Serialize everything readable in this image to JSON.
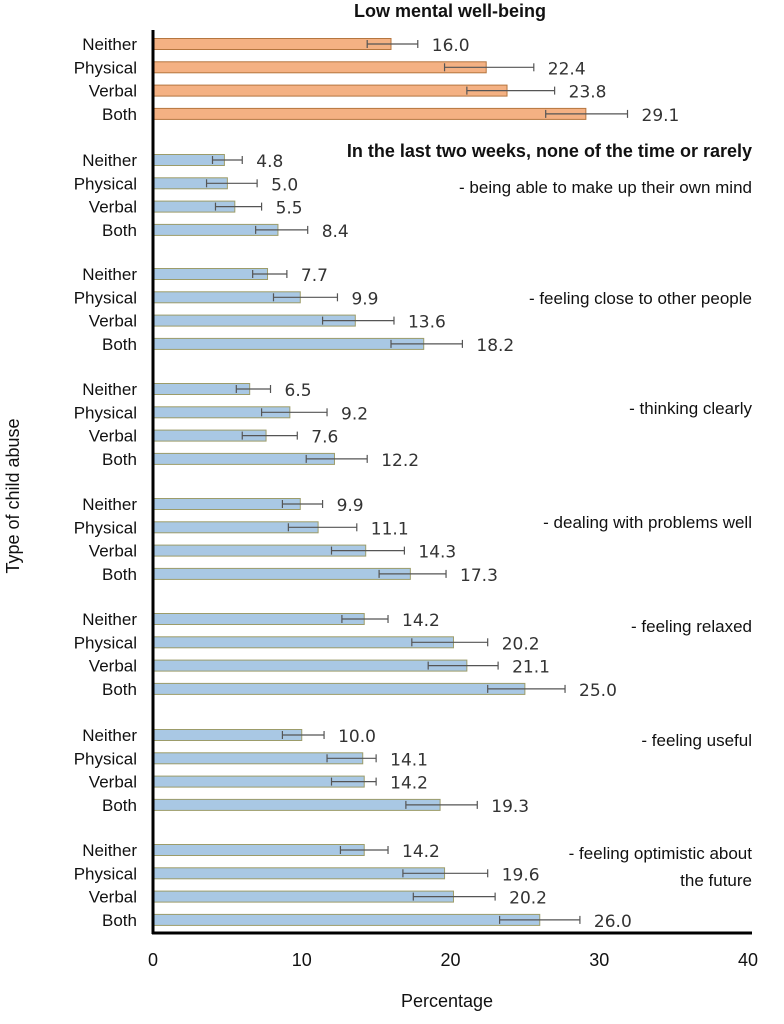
{
  "chart_data": {
    "type": "bar",
    "orientation": "horizontal",
    "xlabel": "Percentage",
    "ylabel": "Type of child abuse",
    "xlim": [
      0,
      40
    ],
    "xticks": [
      0,
      10,
      20,
      30,
      40
    ],
    "grid": false,
    "categories": [
      "Neither",
      "Physical",
      "Verbal",
      "Both"
    ],
    "heading": "In the last two weeks, none of the time or rarely",
    "colors": {
      "orange": "#F4B183",
      "orange_edge": "#B5763F",
      "blue": "#A9C8E4",
      "blue_edge": "#9C9C6A",
      "error": "#555555"
    },
    "groups": [
      {
        "label": "Low mental well-being",
        "color": "orange",
        "values": [
          16.0,
          22.4,
          23.8,
          29.1
        ],
        "ci_low": [
          14.4,
          19.6,
          21.1,
          26.4
        ],
        "ci_high": [
          17.8,
          25.6,
          27.0,
          31.9
        ]
      },
      {
        "label": "- being able to make up their own mind",
        "color": "blue",
        "values": [
          4.8,
          5.0,
          5.5,
          8.4
        ],
        "ci_low": [
          4.0,
          3.6,
          4.2,
          6.9
        ],
        "ci_high": [
          6.0,
          7.0,
          7.3,
          10.4
        ]
      },
      {
        "label": "- feeling close to other people",
        "color": "blue",
        "values": [
          7.7,
          9.9,
          13.6,
          18.2
        ],
        "ci_low": [
          6.7,
          8.1,
          11.4,
          16.0
        ],
        "ci_high": [
          9.0,
          12.4,
          16.2,
          20.8
        ]
      },
      {
        "label": "- thinking  clearly",
        "color": "blue",
        "values": [
          6.5,
          9.2,
          7.6,
          12.2
        ],
        "ci_low": [
          5.6,
          7.3,
          6.0,
          10.3
        ],
        "ci_high": [
          7.9,
          11.7,
          9.7,
          14.4
        ]
      },
      {
        "label": "- dealing with  problems well",
        "color": "blue",
        "values": [
          9.9,
          11.1,
          14.3,
          17.3
        ],
        "ci_low": [
          8.7,
          9.1,
          12.0,
          15.2
        ],
        "ci_high": [
          11.4,
          13.7,
          16.9,
          19.7
        ]
      },
      {
        "label": "- feeling relaxed",
        "color": "blue",
        "values": [
          14.2,
          20.2,
          21.1,
          25.0
        ],
        "ci_low": [
          12.7,
          17.4,
          18.5,
          22.5
        ],
        "ci_high": [
          15.8,
          22.5,
          23.2,
          27.7
        ]
      },
      {
        "label": "- feeling useful",
        "color": "blue",
        "values": [
          10.0,
          14.1,
          14.2,
          19.3
        ],
        "ci_low": [
          8.7,
          11.7,
          12.0,
          17.0
        ],
        "ci_high": [
          11.5,
          15.0,
          15.0,
          21.8
        ]
      },
      {
        "label": "- feeling optimistic about",
        "label2": "the future",
        "color": "blue",
        "values": [
          14.2,
          19.6,
          20.2,
          26.0
        ],
        "ci_low": [
          12.6,
          16.8,
          17.5,
          23.3
        ],
        "ci_high": [
          15.8,
          22.5,
          23.0,
          28.7
        ]
      }
    ]
  }
}
